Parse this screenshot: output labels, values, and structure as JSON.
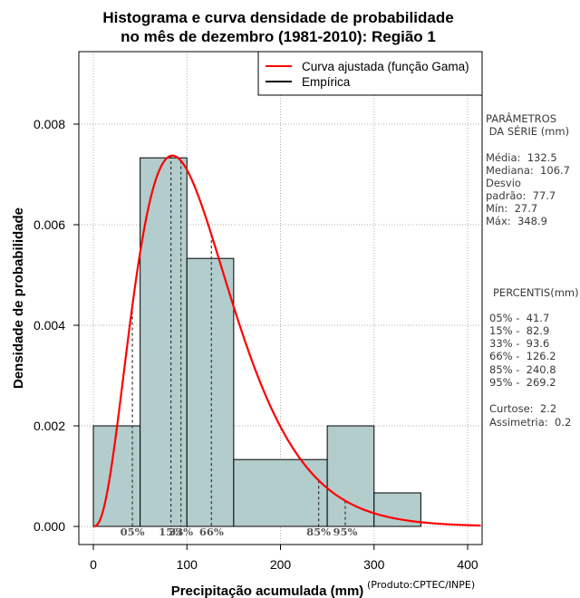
{
  "chart_data": {
    "type": "bar",
    "title_line1": "Histograma e curva densidade de probabilidade",
    "title_line2": "no mês de dezembro (1981-2010): Região 1",
    "xlabel": "Precipitação acumulada (mm)",
    "ylabel": "Densidade de probabilidade",
    "xlim": [
      -15,
      415
    ],
    "ylim": [
      -0.0004,
      0.0095
    ],
    "x_ticks": [
      0,
      100,
      200,
      300,
      400
    ],
    "y_ticks": [
      0.0,
      0.002,
      0.004,
      0.006,
      0.008
    ],
    "y_tick_labels": [
      "0.000",
      "0.002",
      "0.004",
      "0.006",
      "0.008"
    ],
    "grid": true,
    "bins": [
      {
        "start": 0,
        "end": 50,
        "density": 0.002
      },
      {
        "start": 50,
        "end": 100,
        "density": 0.00733
      },
      {
        "start": 100,
        "end": 150,
        "density": 0.00533
      },
      {
        "start": 150,
        "end": 250,
        "density": 0.00133
      },
      {
        "start": 250,
        "end": 300,
        "density": 0.002
      },
      {
        "start": 300,
        "end": 350,
        "density": 0.000667
      }
    ],
    "gamma_fit": {
      "shape": 3.6,
      "scale": 32.5
    },
    "percentile_lines": [
      {
        "label": "05%",
        "value": 41.7
      },
      {
        "label": "15%",
        "value": 82.9
      },
      {
        "label": "33%",
        "value": 93.6
      },
      {
        "label": "66%",
        "value": 126.2
      },
      {
        "label": "85%",
        "value": 240.8
      },
      {
        "label": "95%",
        "value": 269.2
      }
    ],
    "legend": {
      "position": "top-right",
      "entries": [
        {
          "label": "Curva ajustada (função Gama)",
          "color": "#ff0000"
        },
        {
          "label": "Empírica",
          "color": "#000000"
        }
      ]
    },
    "colors": {
      "bar_fill": "#b3cccc",
      "curve": "#ff0000",
      "grid": "#b0b0b0"
    }
  },
  "sidebar": {
    "params_header_1": "PARÂMETROS",
    "params_header_2": " DA SÉRIE (mm)",
    "media": "Média:  132.5",
    "mediana": "Mediana:  106.7",
    "desvio_1": "Desvio",
    "desvio_2": "padrão:  77.7",
    "min": "Mín:  27.7",
    "max": "Máx:  348.9",
    "percentis_header": "PERCENTIS(mm)",
    "p05": "05% -  41.7",
    "p15": "15% -  82.9",
    "p33": "33% -  93.6",
    "p66": "66% -  126.2",
    "p85": "85% -  240.8",
    "p95": "95% -  269.2",
    "curtose": "Curtose:  2.2",
    "assimetria": "Assimetria:  0.2"
  },
  "footer": {
    "credit": "(Produto:CPTEC/INPE)"
  }
}
